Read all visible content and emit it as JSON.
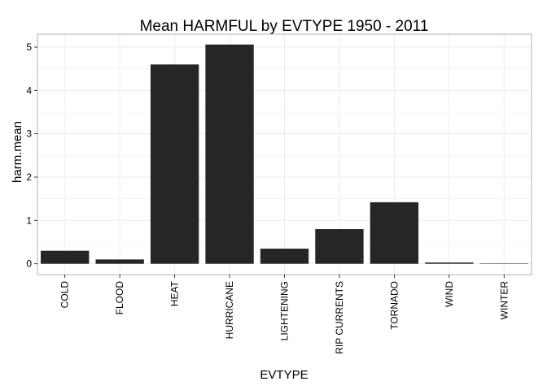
{
  "chart_data": {
    "type": "bar",
    "title": "Mean HARMFUL by EVTYPE 1950 - 2011",
    "xlabel": "EVTYPE",
    "ylabel": "harm.mean",
    "categories": [
      "COLD",
      "FLOOD",
      "HEAT",
      "HURRICANE",
      "LIGHTENING",
      "RIP CURRENTS",
      "TORNADO",
      "WIND",
      "WINTER"
    ],
    "values": [
      0.3,
      0.1,
      4.6,
      5.06,
      0.35,
      0.8,
      1.42,
      0.03,
      0.01
    ],
    "ylim": [
      -0.25,
      5.3
    ],
    "yticks": [
      0,
      1,
      2,
      3,
      4,
      5
    ],
    "grid": true,
    "colors": {
      "bar": "#262626",
      "grid": "#ebebeb",
      "panel_border": "#b3b3b3",
      "background": "#ffffff"
    }
  }
}
